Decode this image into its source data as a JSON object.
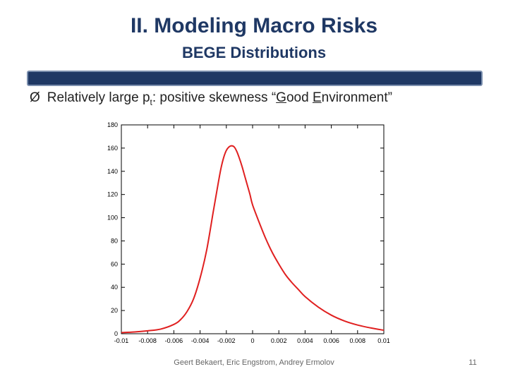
{
  "slide": {
    "title": "II. Modeling Macro Risks",
    "subtitle": "BEGE Distributions",
    "bullet": {
      "arrow": "Ø",
      "pre": "Relatively large p",
      "sub": "t",
      "mid": ": positive skewness “",
      "g": "G",
      "ood": "ood ",
      "e": "E",
      "nv": "nvironment”"
    },
    "footer": "Geert Bekaert, Eric Engstrom, Andrey Ermolov",
    "page_number": "11"
  },
  "colors": {
    "accent": "#1f3864",
    "curve": "#e02020"
  },
  "chart_data": {
    "type": "line",
    "title": "",
    "xlabel": "",
    "ylabel": "",
    "xlim": [
      -0.01,
      0.01
    ],
    "ylim": [
      0,
      180
    ],
    "x_ticks": [
      -0.01,
      -0.008,
      -0.006,
      -0.004,
      -0.002,
      0,
      0.002,
      0.004,
      0.006,
      0.008,
      0.01
    ],
    "x_tick_labels": [
      "-0.01",
      "-0.008",
      "-0.006",
      "-0.004",
      "-0.002",
      "0",
      "0.002",
      "0.004",
      "0.006",
      "0.008",
      "0.01"
    ],
    "y_ticks": [
      0,
      20,
      40,
      60,
      80,
      100,
      120,
      140,
      160,
      180
    ],
    "y_tick_labels": [
      "0",
      "20",
      "40",
      "60",
      "80",
      "100",
      "120",
      "140",
      "160",
      "180"
    ],
    "grid": false,
    "series": [
      {
        "x": [
          -0.01,
          -0.009,
          -0.008,
          -0.007,
          -0.006,
          -0.0055,
          -0.005,
          -0.0045,
          -0.004,
          -0.0035,
          -0.003,
          -0.0028,
          -0.0026,
          -0.0024,
          -0.0022,
          -0.002,
          -0.0018,
          -0.0016,
          -0.0014,
          -0.0012,
          -0.001,
          -0.0008,
          -0.0006,
          -0.0004,
          -0.0002,
          0,
          0.0005,
          0.001,
          0.0015,
          0.002,
          0.0025,
          0.003,
          0.0035,
          0.004,
          0.005,
          0.006,
          0.007,
          0.008,
          0.009,
          0.01
        ],
        "y": [
          1,
          1.5,
          2.5,
          4,
          8,
          12,
          19,
          30,
          48,
          72,
          105,
          118,
          131,
          143,
          152,
          158,
          161,
          162,
          161,
          157,
          151,
          144,
          136,
          128,
          120,
          111,
          96,
          82,
          70,
          60,
          51,
          44,
          38,
          32,
          23,
          16,
          11,
          7.5,
          5,
          3
        ]
      }
    ]
  }
}
